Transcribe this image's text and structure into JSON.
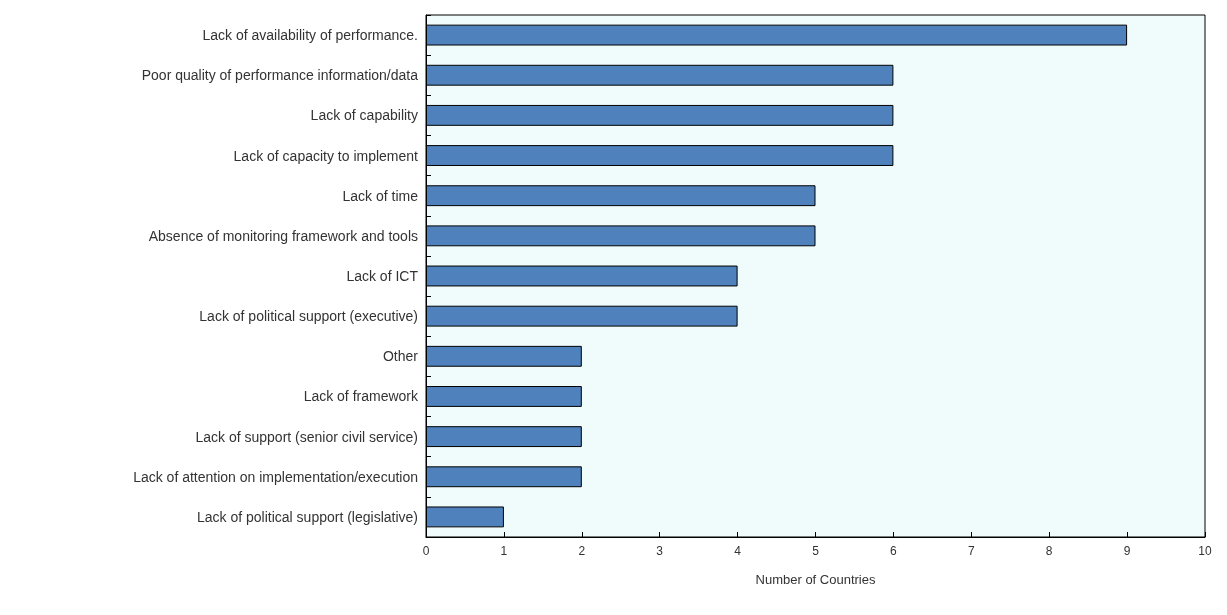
{
  "chart_data": {
    "type": "bar",
    "orientation": "horizontal",
    "xlabel": "Number of Countries",
    "categories": [
      "Lack of availability of performance.",
      "Poor quality of performance information/data",
      "Lack of capability",
      "Lack of capacity to implement",
      "Lack of time",
      "Absence of monitoring framework and tools",
      "Lack of ICT",
      "Lack of political support (executive)",
      "Other",
      "Lack of framework",
      "Lack of support (senior civil service)",
      "Lack of attention on implementation/execution",
      "Lack of political support (legislative)"
    ],
    "values": [
      9,
      6,
      6,
      6,
      5,
      5,
      4,
      4,
      2,
      2,
      2,
      2,
      1
    ],
    "color": "#4f81bd",
    "xlim": [
      0,
      10
    ],
    "xticks": [
      0,
      1,
      2,
      3,
      4,
      5,
      6,
      7,
      8,
      9,
      10
    ]
  }
}
